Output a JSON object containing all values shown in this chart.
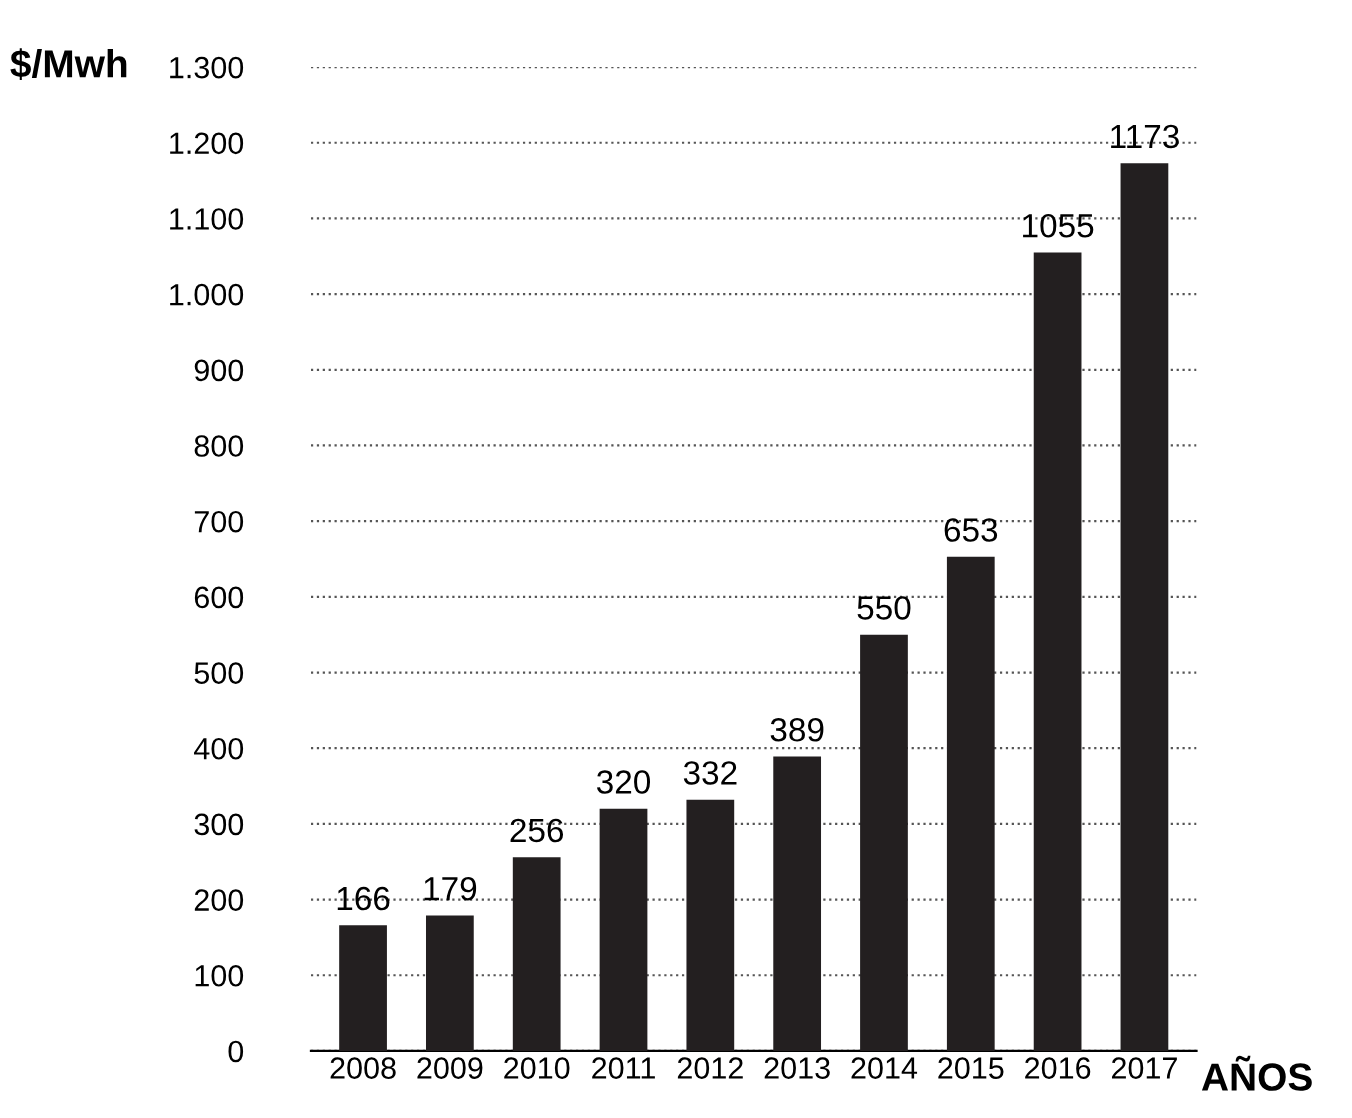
{
  "chart_data": {
    "type": "bar",
    "xlabel": "AÑOS",
    "ylabel": "$/Mwh",
    "categories": [
      "2008",
      "2009",
      "2010",
      "2011",
      "2012",
      "2013",
      "2014",
      "2015",
      "2016",
      "2017"
    ],
    "values": [
      166,
      179,
      256,
      320,
      332,
      389,
      550,
      653,
      1055,
      1173
    ],
    "color": "#231f20",
    "ylim": [
      0,
      1300
    ],
    "yticks": [
      0,
      100,
      200,
      300,
      400,
      500,
      600,
      700,
      800,
      900,
      {
        "value": 1000,
        "label": "1.000"
      },
      {
        "value": 1100,
        "label": "1.100"
      },
      {
        "value": 1200,
        "label": "1.200"
      },
      {
        "value": 1300,
        "label": "1.300"
      }
    ],
    "grid": "y",
    "data_labels": true
  }
}
